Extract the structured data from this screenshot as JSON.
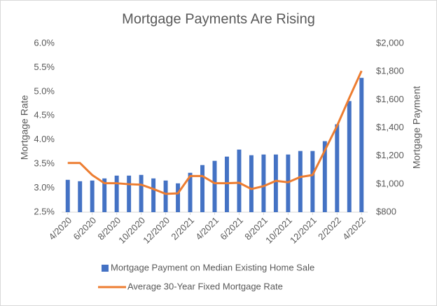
{
  "chart_data": {
    "type": "combo",
    "title": "Mortgage Payments Are Rising",
    "y_label": "Mortgage Rate",
    "y2_label": "Mortgage Payment",
    "categories": [
      "4/2020",
      null,
      "6/2020",
      null,
      "8/2020",
      null,
      "10/2020",
      null,
      "12/2020",
      null,
      "2/2021",
      null,
      "4/2021",
      null,
      "6/2021",
      null,
      "8/2021",
      null,
      "10/2021",
      null,
      "12/2021",
      null,
      "2/2022",
      null,
      "4/2022"
    ],
    "series": [
      {
        "name": "Mortgage Payment on Median Existing Home Sale",
        "type": "bar",
        "axis": "y2",
        "color": "#4472c4",
        "values": [
          1030,
          1020,
          1025,
          1040,
          1060,
          1060,
          1065,
          1040,
          1025,
          1005,
          1080,
          1135,
          1165,
          1195,
          1245,
          1205,
          1210,
          1210,
          1210,
          1235,
          1235,
          1305,
          1425,
          1590,
          1755
        ]
      },
      {
        "name": "Average 30-Year Fixed Mortgage Rate",
        "type": "line",
        "axis": "y",
        "color": "#ed7d31",
        "values": [
          3.52,
          3.52,
          3.27,
          3.1,
          3.1,
          3.08,
          3.07,
          2.98,
          2.88,
          2.89,
          3.25,
          3.25,
          3.1,
          3.1,
          3.11,
          2.98,
          3.04,
          3.15,
          3.12,
          3.23,
          3.27,
          3.78,
          4.29,
          4.87,
          5.43
        ]
      }
    ],
    "ylim": [
      2.5,
      6.0
    ],
    "yticks": [
      {
        "value": 2.5,
        "label": "2.5%"
      },
      {
        "value": 3.0,
        "label": "3.0%"
      },
      {
        "value": 3.5,
        "label": "3.5%"
      },
      {
        "value": 4.0,
        "label": "4.0%"
      },
      {
        "value": 4.5,
        "label": "4.5%"
      },
      {
        "value": 5.0,
        "label": "5.0%"
      },
      {
        "value": 5.5,
        "label": "5.5%"
      },
      {
        "value": 6.0,
        "label": "6.0%"
      }
    ],
    "y2lim": [
      800,
      2000
    ],
    "y2ticks": [
      {
        "value": 800,
        "label": "$800"
      },
      {
        "value": 1000,
        "label": "$1,000"
      },
      {
        "value": 1200,
        "label": "$1,200"
      },
      {
        "value": 1400,
        "label": "$1,400"
      },
      {
        "value": 1600,
        "label": "$1,600"
      },
      {
        "value": 1800,
        "label": "$1,800"
      },
      {
        "value": 2000,
        "label": "$2,000"
      }
    ],
    "grid": false,
    "legend": "bottom"
  }
}
